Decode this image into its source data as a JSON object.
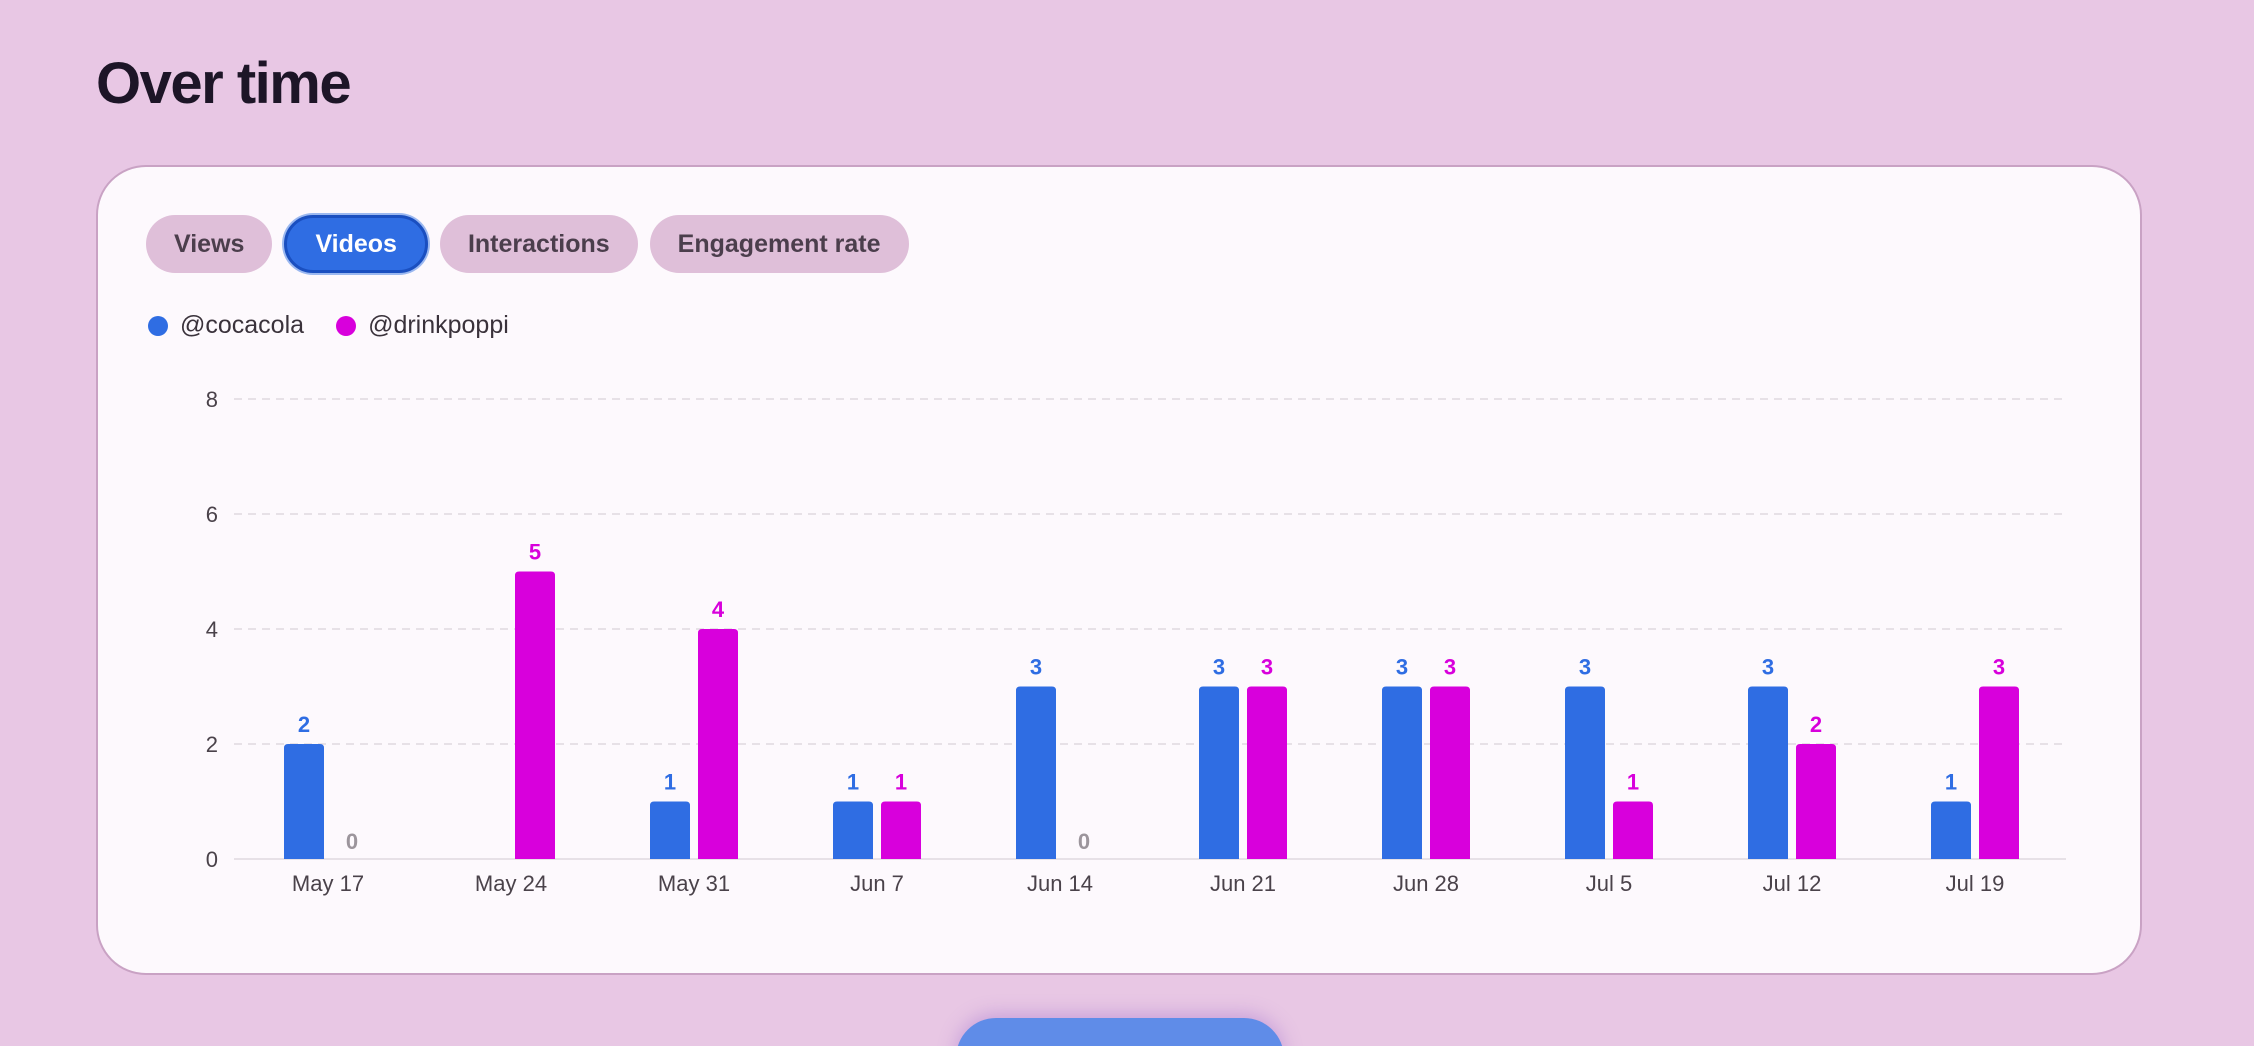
{
  "page": {
    "title": "Over time"
  },
  "tabs": [
    {
      "label": "Views",
      "active": false
    },
    {
      "label": "Videos",
      "active": true
    },
    {
      "label": "Interactions",
      "active": false
    },
    {
      "label": "Engagement rate",
      "active": false
    }
  ],
  "legend": [
    {
      "label": "@cocacola",
      "color": "#2f6de3"
    },
    {
      "label": "@drinkpoppi",
      "color": "#d800dc"
    }
  ],
  "colors": {
    "accent": "#2f6de3",
    "series_a": "#2f6de3",
    "series_b": "#d800dc",
    "zero_label": "#9c959c"
  },
  "chart_data": {
    "type": "bar",
    "categories": [
      "May 17",
      "May 24",
      "May 31",
      "Jun 7",
      "Jun 14",
      "Jun 21",
      "Jun 28",
      "Jul 5",
      "Jul 12",
      "Jul 19"
    ],
    "series": [
      {
        "name": "@cocacola",
        "color": "#2f6de3",
        "values": [
          2,
          null,
          1,
          1,
          3,
          3,
          3,
          3,
          3,
          1
        ]
      },
      {
        "name": "@drinkpoppi",
        "color": "#d800dc",
        "values": [
          0,
          5,
          4,
          1,
          0,
          3,
          3,
          1,
          2,
          3
        ]
      }
    ],
    "y_ticks": [
      0,
      2,
      4,
      6,
      8
    ],
    "ylim": [
      0,
      8
    ],
    "grid": true,
    "legend_position": "top-left",
    "data_labels": true
  }
}
